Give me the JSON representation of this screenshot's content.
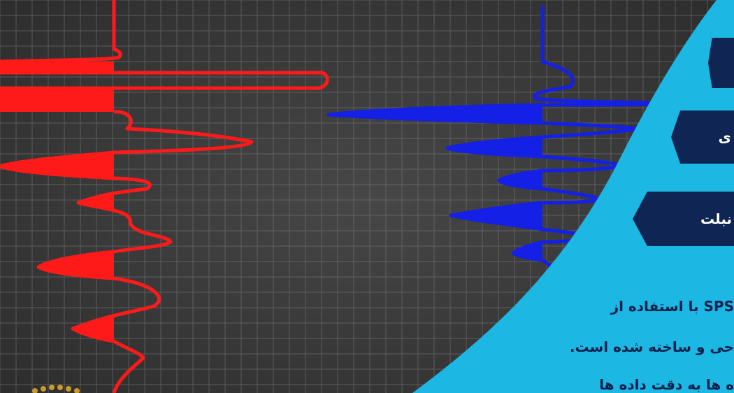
{
  "buttons": [
    {
      "label": ""
    },
    {
      "label": "ی"
    },
    {
      "label": "نبلت"
    }
  ],
  "description": [
    "SPS با استفاده از",
    "حی و ساخته شده است.",
    "ه ها به دقت داده ها"
  ],
  "colors": {
    "background": "#3a3a3a",
    "grid": "#8a8a8a",
    "red_trace": "#ff1a1a",
    "blue_trace": "#1520e6",
    "panel": "#1cb7e3",
    "button": "#0f2553",
    "text": "#0b1f4a",
    "logo": "#c99a2a"
  }
}
